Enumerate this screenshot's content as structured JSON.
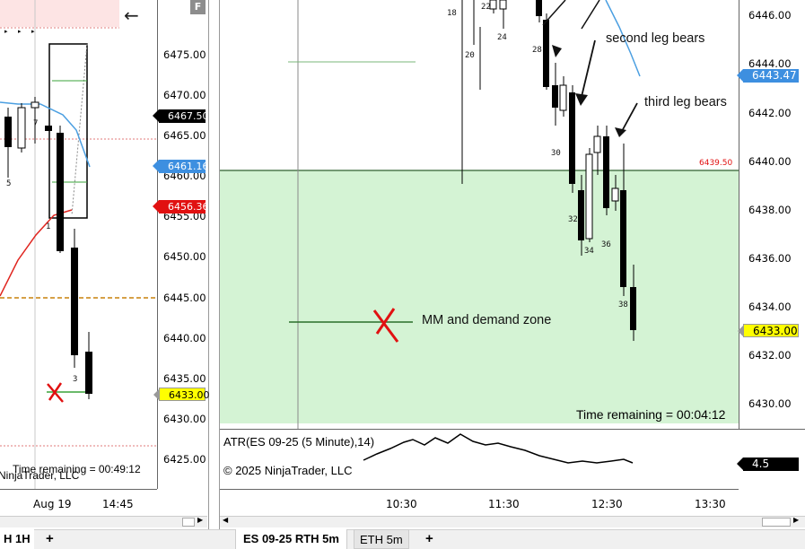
{
  "left_chart": {
    "price_ticks": [
      "6475.00",
      "6470.00",
      "6465.00",
      "6460.00",
      "6455.00",
      "6450.00",
      "6445.00",
      "6440.00",
      "6435.00",
      "6430.00",
      "6425.00"
    ],
    "flags": {
      "upper_black": "6467.50",
      "blue": "6461.16",
      "red": "6456.36",
      "yellow": "6433.00"
    },
    "time_labels": [
      "Aug 19",
      "14:45"
    ],
    "time_remaining": "Time remaining = 00:49:12",
    "copyright_fragment": "NinjaTrader, LLC",
    "bar_numbers": [
      "5",
      "7",
      "1",
      "3"
    ],
    "back_arrow": "←",
    "badge": "F"
  },
  "right_chart": {
    "price_ticks": [
      "6446.00",
      "6444.00",
      "6442.00",
      "6440.00",
      "6438.00",
      "6436.00",
      "6434.00",
      "6432.00",
      "6430.00"
    ],
    "flags": {
      "blue": "6443.47",
      "yellow": "6433.00",
      "level_text": "6439.50"
    },
    "bar_numbers": [
      "18",
      "20",
      "22",
      "24",
      "28",
      "30",
      "32",
      "34",
      "36",
      "38"
    ],
    "annotations": {
      "second": "second leg bears",
      "third": "third leg bears",
      "zone": "MM  and demand zone"
    },
    "time_remaining": "Time remaining = 00:04:12",
    "indicator_label": "ATR(ES 09-25 (5 Minute),14)",
    "indicator_value": "4.5",
    "copyright": "© 2025 NinjaTrader, LLC",
    "time_labels": [
      "10:30",
      "11:30",
      "12:30",
      "13:30"
    ]
  },
  "tabs": {
    "left_partial": "H 1H",
    "active": "ES 09-25 RTH 5m",
    "second": "ETH 5m",
    "add": "+"
  },
  "colors": {
    "zone_fill": "#d4f3d4",
    "zone_line": "#4f7a4f",
    "blue_flag": "#3d8fe0",
    "yellow_flag": "#ffff00",
    "red_flag": "#e11111",
    "black_flag": "#000000",
    "ema_blue": "#4b9fe1",
    "ema_red": "#e0251f",
    "orange_dash": "#c8800c"
  }
}
